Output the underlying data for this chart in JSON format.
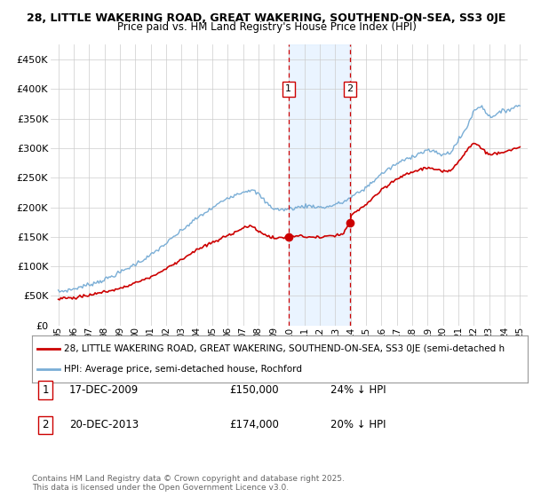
{
  "title1": "28, LITTLE WAKERING ROAD, GREAT WAKERING, SOUTHEND-ON-SEA, SS3 0JE",
  "title2": "Price paid vs. HM Land Registry's House Price Index (HPI)",
  "legend_line1": "28, LITTLE WAKERING ROAD, GREAT WAKERING, SOUTHEND-ON-SEA, SS3 0JE (semi-detached h",
  "legend_line2": "HPI: Average price, semi-detached house, Rochford",
  "sale1_date": "17-DEC-2009",
  "sale1_price": "£150,000",
  "sale1_hpi": "24% ↓ HPI",
  "sale1_label": "1",
  "sale1_year": 2009.96,
  "sale1_value": 150000,
  "sale2_date": "20-DEC-2013",
  "sale2_price": "£174,000",
  "sale2_hpi": "20% ↓ HPI",
  "sale2_label": "2",
  "sale2_year": 2013.96,
  "sale2_value": 174000,
  "footer": "Contains HM Land Registry data © Crown copyright and database right 2025.\nThis data is licensed under the Open Government Licence v3.0.",
  "color_red": "#cc0000",
  "color_blue": "#7aaed6",
  "color_vline": "#cc0000",
  "color_shade": "#ddeeff",
  "ylim_min": 0,
  "ylim_max": 475000,
  "xlim_min": 1994.5,
  "xlim_max": 2025.5,
  "yticks": [
    0,
    50000,
    100000,
    150000,
    200000,
    250000,
    300000,
    350000,
    400000,
    450000
  ],
  "ytick_labels": [
    "£0",
    "£50K",
    "£100K",
    "£150K",
    "£200K",
    "£250K",
    "£300K",
    "£350K",
    "£400K",
    "£450K"
  ],
  "xticks": [
    1995,
    1996,
    1997,
    1998,
    1999,
    2000,
    2001,
    2002,
    2003,
    2004,
    2005,
    2006,
    2007,
    2008,
    2009,
    2010,
    2011,
    2012,
    2013,
    2014,
    2015,
    2016,
    2017,
    2018,
    2019,
    2020,
    2021,
    2022,
    2023,
    2024,
    2025
  ],
  "xtick_labels": [
    "95",
    "96",
    "97",
    "98",
    "99",
    "00",
    "01",
    "02",
    "03",
    "04",
    "05",
    "06",
    "07",
    "08",
    "09",
    "10",
    "11",
    "12",
    "13",
    "14",
    "15",
    "16",
    "17",
    "18",
    "19",
    "20",
    "21",
    "22",
    "23",
    "24",
    "25"
  ]
}
